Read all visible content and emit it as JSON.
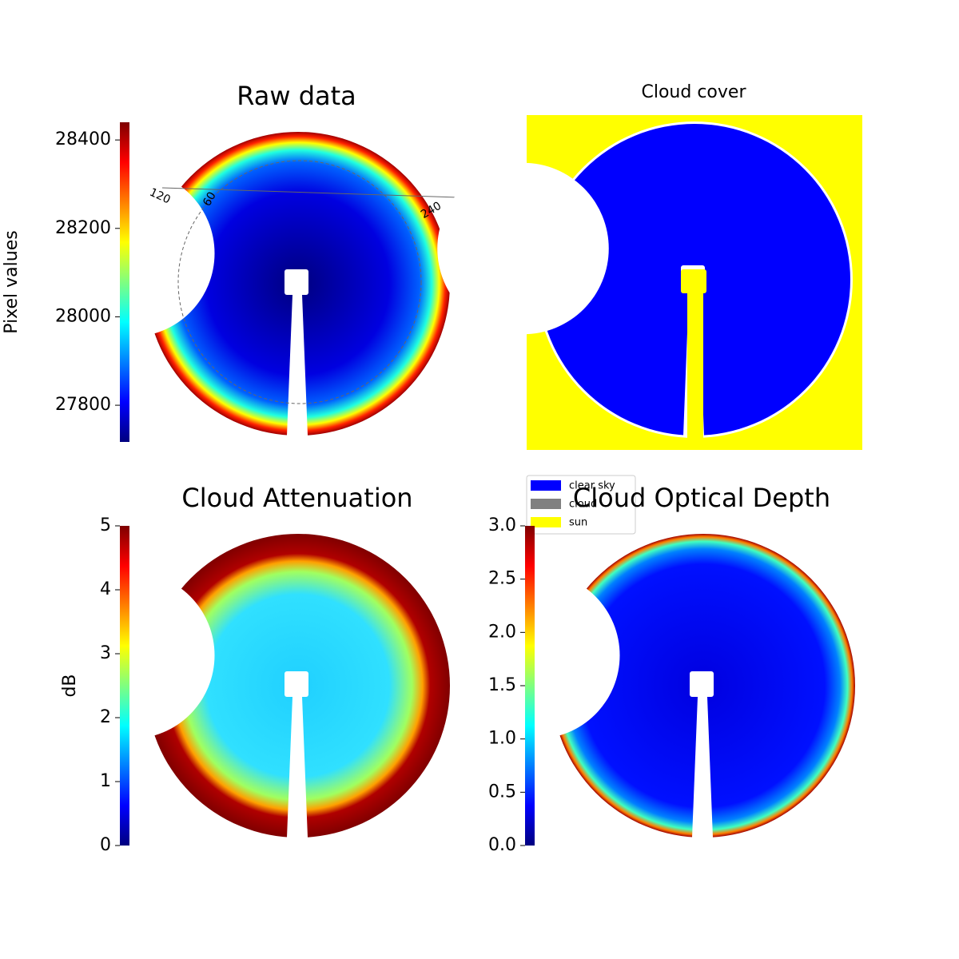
{
  "chart_data": [
    {
      "type": "image",
      "title": "Raw data",
      "colormap": "jet",
      "colorbar": {
        "label": "Pixel values",
        "ylim": [
          27717,
          28440
        ],
        "yticks": [
          27800,
          28000,
          28200,
          28400
        ]
      },
      "annotations": [
        "120",
        "60",
        "240"
      ]
    },
    {
      "type": "image",
      "title": "Cloud cover",
      "legend": [
        {
          "name": "clear sky",
          "color": "#0000ff"
        },
        {
          "name": "cloud",
          "color": "#808080"
        },
        {
          "name": "sun",
          "color": "#ffff00"
        }
      ]
    },
    {
      "type": "image",
      "title": "Cloud Attenuation",
      "colormap": "jet",
      "colorbar": {
        "label": "dB",
        "ylim": [
          0,
          5
        ],
        "yticks": [
          0,
          1,
          2,
          3,
          4,
          5
        ]
      }
    },
    {
      "type": "image",
      "title": "Cloud Optical Depth",
      "colormap": "jet",
      "colorbar": {
        "ylim": [
          0,
          3
        ],
        "yticks": [
          {
            "value": 0,
            "label": "0.0"
          },
          0.5,
          {
            "value": 1,
            "label": "1.0"
          },
          1.5,
          {
            "value": 2,
            "label": "2.0"
          },
          2.5,
          {
            "value": 3,
            "label": "3.0"
          }
        ]
      }
    }
  ]
}
